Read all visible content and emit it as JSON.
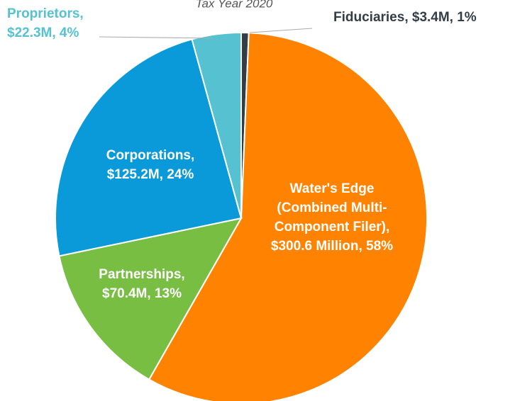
{
  "chart_data": {
    "type": "pie",
    "subtitle": "Tax Year 2020",
    "values": [
      3.4,
      300.6,
      70.4,
      125.2,
      22.3
    ],
    "value_labels": [
      [
        "Fiduciaries, $3.4M, 1%"
      ],
      [
        "Water's Edge",
        "(Combined Multi-",
        "Component Filer),",
        "$300.6 Million, 58%"
      ],
      [
        "Partnerships,",
        "$70.4M, 13%"
      ],
      [
        "Corporations,",
        "$125.2M, 24%"
      ],
      [
        "Proprietors,",
        "$22.3M, 4%"
      ]
    ],
    "colors": [
      "#333d47",
      "#ff8200",
      "#78be43",
      "#0a9ad9",
      "#55c1d1"
    ]
  }
}
